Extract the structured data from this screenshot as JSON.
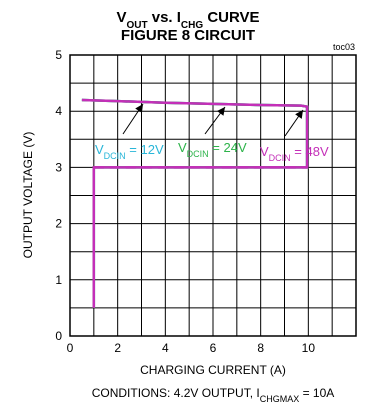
{
  "chart_data": {
    "type": "line",
    "title_lines": [
      {
        "parts": [
          {
            "t": "V",
            "sub": false
          },
          {
            "t": "OUT",
            "sub": true
          },
          {
            "t": " vs. I",
            "sub": false
          },
          {
            "t": "CHG",
            "sub": true
          },
          {
            "t": " CURVE",
            "sub": false
          }
        ]
      },
      {
        "parts": [
          {
            "t": "FIGURE 8 CIRCUIT",
            "sub": false
          }
        ]
      }
    ],
    "figure_id": "toc03",
    "xlabel": "CHARGING CURRENT (A)",
    "ylabel": "OUTPUT VOLTAGE (V)",
    "xlim": [
      0,
      12
    ],
    "ylim": [
      0,
      5
    ],
    "xticks": [
      0,
      2,
      4,
      6,
      8,
      10
    ],
    "yticks": [
      0,
      1,
      2,
      3,
      4,
      5
    ],
    "grid": true,
    "conditions": {
      "parts": [
        {
          "t": "CONDITIONS: 4.2V OUTPUT, I",
          "sub": false
        },
        {
          "t": "CHGMAX",
          "sub": true
        },
        {
          "t": " = 10A",
          "sub": false
        }
      ]
    },
    "series": [
      {
        "label_parts": [
          {
            "t": "V",
            "sub": false
          },
          {
            "t": "DCIN",
            "sub": true
          },
          {
            "t": " = 12V",
            "sub": false
          }
        ],
        "color": "#29b6d8",
        "x": [
          0.5,
          2,
          4,
          6,
          8,
          9.7,
          9.95,
          9.95,
          1.0,
          1.0
        ],
        "y": [
          4.2,
          4.18,
          4.15,
          4.13,
          4.11,
          4.1,
          4.08,
          3.0,
          3.0,
          0.5
        ]
      },
      {
        "label_parts": [
          {
            "t": "V",
            "sub": false
          },
          {
            "t": "DCIN",
            "sub": true
          },
          {
            "t": " = 24V",
            "sub": false
          }
        ],
        "color": "#2db34a",
        "x": [
          0.5,
          2,
          4,
          6,
          8,
          9.7,
          9.95,
          9.95,
          1.0,
          1.0
        ],
        "y": [
          4.2,
          4.18,
          4.15,
          4.13,
          4.11,
          4.1,
          4.08,
          3.0,
          3.0,
          0.5
        ]
      },
      {
        "label_parts": [
          {
            "t": "V",
            "sub": false
          },
          {
            "t": "DCIN",
            "sub": true
          },
          {
            "t": " = 48V",
            "sub": false
          }
        ],
        "color": "#c42fb8",
        "x": [
          0.5,
          2,
          4,
          6,
          8,
          9.7,
          9.95,
          9.95,
          1.0,
          1.0
        ],
        "y": [
          4.2,
          4.18,
          4.15,
          4.13,
          4.11,
          4.1,
          4.08,
          3.0,
          3.0,
          0.5
        ]
      }
    ]
  }
}
